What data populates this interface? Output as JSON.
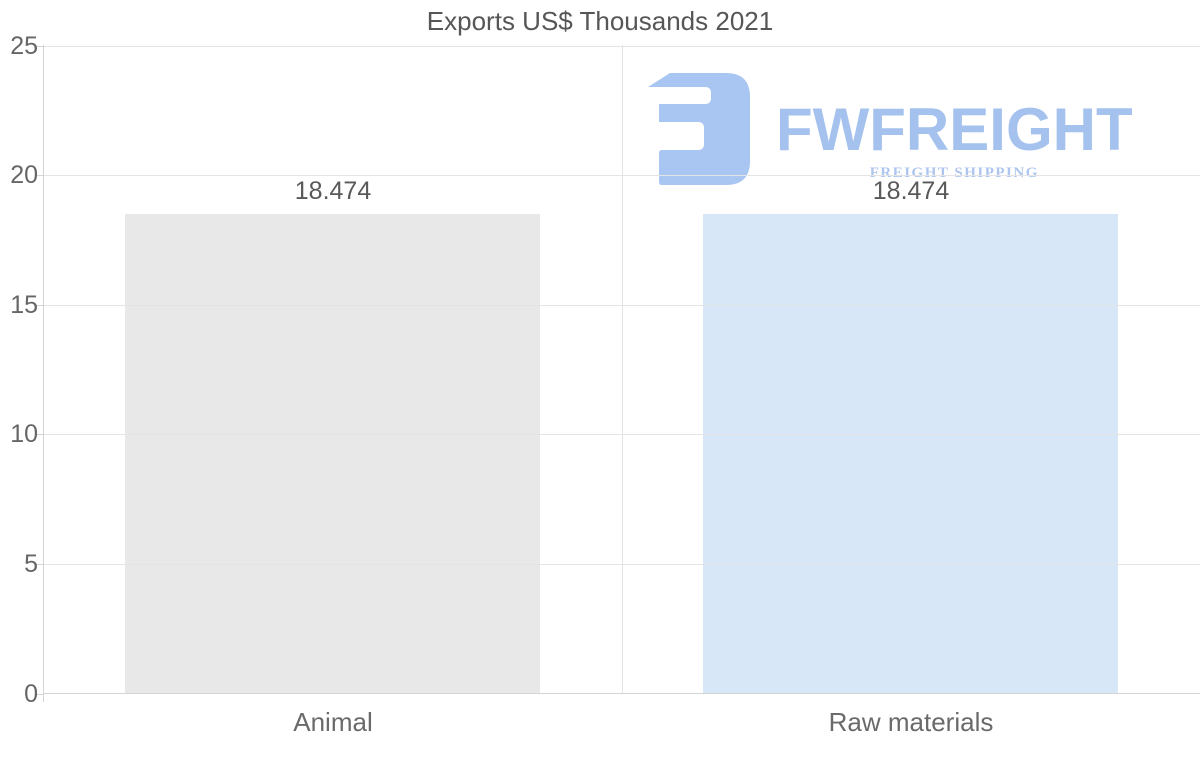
{
  "chart_data": {
    "type": "bar",
    "title": "Exports US$ Thousands 2021",
    "categories": [
      "Animal",
      "Raw materials"
    ],
    "values": [
      18.474,
      18.474
    ],
    "value_labels": [
      "18.474",
      "18.474"
    ],
    "bar_colors": [
      "#e8e8e8",
      "#d7e7f8"
    ],
    "xlabel": "",
    "ylabel": "",
    "ylim": [
      0,
      25
    ],
    "yticks": [
      0,
      5,
      10,
      15,
      20,
      25
    ],
    "grid": "horizontal gridlines at each y tick plus one vertical category divider",
    "legend": "none"
  },
  "logo": {
    "wordmark": "FWFREIGHT",
    "subtitle": "FREIGHT SHIPPING",
    "icon": "fwfreight-f-icon",
    "icon_color": "#a9c6f2",
    "wordmark_color": "#a5c2ee",
    "subtitle_color": "#aec5ef"
  },
  "colors": {
    "title_text": "#565656",
    "axis_text": "#666666",
    "gridline": "#e4e4e4",
    "axis_line": "#d4d4d4",
    "background": "#ffffff"
  }
}
